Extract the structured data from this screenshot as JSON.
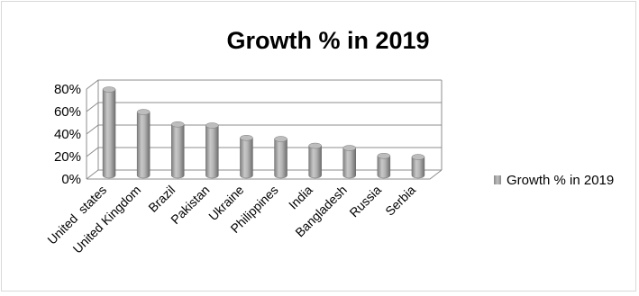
{
  "chart_data": {
    "type": "bar",
    "title": "Growth % in 2019",
    "xlabel": "",
    "ylabel": "",
    "categories": [
      "United  states",
      "United Kingdom",
      "Brazil",
      "Pakistan",
      "Ukraine",
      "Philippines",
      "India",
      "Bangladesh",
      "Russia",
      "Serbia"
    ],
    "series": [
      {
        "name": "Growth % in 2019",
        "values": [
          78,
          58,
          47,
          46,
          35,
          34,
          28,
          26,
          19,
          18
        ],
        "color": "#a6a6a6"
      }
    ],
    "ylim": [
      0,
      80
    ],
    "yticks": [
      "0%",
      "20%",
      "40%",
      "60%",
      "80%"
    ],
    "grid": true,
    "legend": "right",
    "style": "3d-cylinder"
  }
}
